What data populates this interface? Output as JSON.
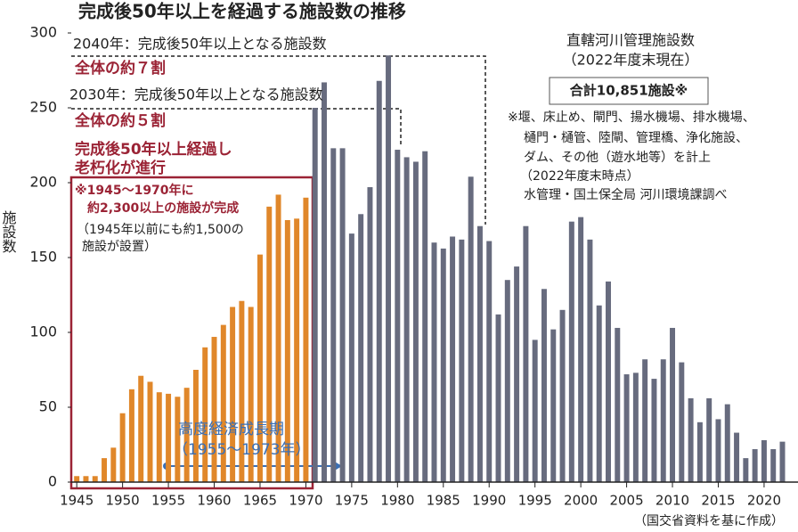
{
  "chart_data": {
    "type": "bar",
    "title": "完成後50年以上を経過する施設数の推移",
    "ylabel": "施設数",
    "x": [
      1945,
      1946,
      1947,
      1948,
      1949,
      1950,
      1951,
      1952,
      1953,
      1954,
      1955,
      1956,
      1957,
      1958,
      1959,
      1960,
      1961,
      1962,
      1963,
      1964,
      1965,
      1966,
      1967,
      1968,
      1969,
      1970,
      1971,
      1972,
      1973,
      1974,
      1975,
      1976,
      1977,
      1978,
      1979,
      1980,
      1981,
      1982,
      1983,
      1984,
      1985,
      1986,
      1987,
      1988,
      1989,
      1990,
      1991,
      1992,
      1993,
      1994,
      1995,
      1996,
      1997,
      1998,
      1999,
      2000,
      2001,
      2002,
      2003,
      2004,
      2005,
      2006,
      2007,
      2008,
      2009,
      2010,
      2011,
      2012,
      2013,
      2014,
      2015,
      2016,
      2017,
      2018,
      2019,
      2020,
      2021,
      2022
    ],
    "series": [
      {
        "color": "#e0872a",
        "values": [
          4,
          4,
          4,
          16,
          23,
          46,
          62,
          71,
          67,
          60,
          59,
          57,
          63,
          75,
          90,
          97,
          105,
          117,
          121,
          117,
          152,
          184,
          192,
          175,
          176,
          190,
          null,
          null,
          null,
          null,
          null,
          null,
          null,
          null,
          null,
          null,
          null,
          null,
          null,
          null,
          null,
          null,
          null,
          null,
          null,
          null,
          null,
          null,
          null,
          null,
          null,
          null,
          null,
          null,
          null,
          null,
          null,
          null,
          null,
          null,
          null,
          null,
          null,
          null,
          null,
          null,
          null,
          null,
          null,
          null,
          null,
          null,
          null,
          null,
          null,
          null,
          null,
          null
        ]
      },
      {
        "color": "#676b7e",
        "values": [
          null,
          null,
          null,
          null,
          null,
          null,
          null,
          null,
          null,
          null,
          null,
          null,
          null,
          null,
          null,
          null,
          null,
          null,
          null,
          null,
          null,
          null,
          null,
          null,
          null,
          null,
          250,
          267,
          223,
          223,
          166,
          179,
          197,
          268,
          285,
          222,
          217,
          214,
          221,
          160,
          156,
          164,
          162,
          204,
          171,
          161,
          112,
          135,
          144,
          171,
          95,
          129,
          102,
          115,
          174,
          177,
          162,
          118,
          134,
          103,
          72,
          73,
          82,
          69,
          82,
          103,
          80,
          56,
          40,
          56,
          42,
          52,
          33,
          16,
          22,
          28,
          22,
          27
        ]
      }
    ],
    "xlim": [
      1944.4,
      2023.7
    ],
    "xticks": [
      1945,
      1950,
      1955,
      1960,
      1965,
      1970,
      1975,
      1980,
      1985,
      1990,
      1995,
      2000,
      2005,
      2010,
      2015,
      2020
    ],
    "ylim": [
      0,
      300
    ],
    "yticks": [
      0,
      50,
      100,
      150,
      200,
      250,
      300
    ],
    "annotations": {
      "y2040": "2040年：完成後50年以上となる施設数",
      "share70": "全体の約７割",
      "y2030": "2030年：完成後50年以上となる施設数",
      "share50": "全体の約５割",
      "aging": [
        "完成後50年以上経過し",
        "老朽化が進行"
      ],
      "built": [
        "※1945～1970年に",
        "約2,300以上の施設が完成"
      ],
      "before": [
        "（1945年以前にも約1,500の",
        "施設が設置）"
      ],
      "growth": [
        "高度経済成長期",
        "（1955～1973年）"
      ],
      "summary": [
        "直轄河川管理施設数",
        "（2022年度末現在）"
      ],
      "total": "合計10,851施設※",
      "notes": [
        "※堰、床止め、閘門、揚水機場、排水機場、",
        "樋門・樋管、陸閘、管理橋、浄化施設、",
        "ダム、その他（遊水地等）を計上",
        "（2022年度末時点）",
        "水管理・国土保全局 河川環境課調べ"
      ],
      "source": "（国交省資料を基に作成）"
    }
  }
}
